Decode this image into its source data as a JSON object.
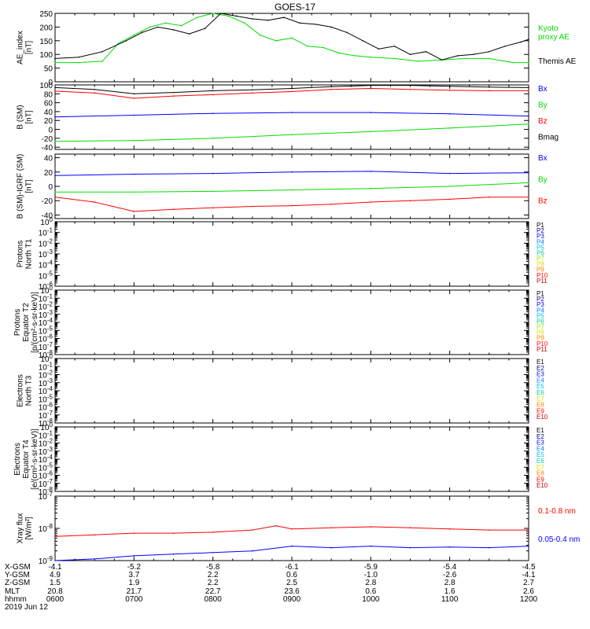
{
  "title": "GOES-17",
  "date_label": "2019 Jun 12",
  "colors": {
    "black": "#000000",
    "red": "#ff0000",
    "green": "#00dd00",
    "blue": "#0000ff"
  },
  "chart_data": [
    {
      "id": "ae",
      "type": "line",
      "ylabel": [
        "AE_index",
        "[nT]"
      ],
      "ylim": [
        0,
        250
      ],
      "yticks": [
        0,
        50,
        100,
        150,
        200,
        250
      ],
      "legend": [
        {
          "text": "Kyoto",
          "color": "#00dd00"
        },
        {
          "text": "proxy AE",
          "color": "#00dd00"
        },
        {
          "text": "Themis AE",
          "color": "#000000"
        }
      ],
      "series": [
        {
          "name": "Kyoto proxy AE",
          "color": "#00dd00",
          "x": [
            6.0,
            6.3,
            6.6,
            6.8,
            7.0,
            7.2,
            7.4,
            7.6,
            7.8,
            8.0,
            8.2,
            8.4,
            8.6,
            8.8,
            9.0,
            9.2,
            9.4,
            9.6,
            9.8,
            10.0,
            10.3,
            10.6,
            10.9,
            11.2,
            11.5,
            11.8,
            12.0
          ],
          "y": [
            70,
            70,
            75,
            140,
            170,
            200,
            215,
            205,
            235,
            250,
            240,
            215,
            170,
            150,
            160,
            130,
            125,
            105,
            95,
            90,
            85,
            75,
            80,
            85,
            85,
            70,
            70
          ]
        },
        {
          "name": "Themis AE",
          "color": "#000000",
          "x": [
            6.0,
            6.3,
            6.6,
            6.9,
            7.1,
            7.3,
            7.5,
            7.7,
            7.9,
            8.1,
            8.3,
            8.5,
            8.7,
            8.9,
            9.1,
            9.3,
            9.5,
            9.7,
            9.9,
            10.1,
            10.3,
            10.5,
            10.7,
            10.9,
            11.1,
            11.3,
            11.5,
            11.7,
            11.9,
            12.0
          ],
          "y": [
            85,
            90,
            110,
            150,
            180,
            200,
            190,
            175,
            195,
            250,
            240,
            230,
            225,
            235,
            215,
            210,
            200,
            180,
            150,
            120,
            130,
            100,
            110,
            80,
            95,
            100,
            110,
            130,
            145,
            155
          ]
        }
      ]
    },
    {
      "id": "b",
      "type": "line",
      "ylabel": [
        "B (SM)",
        "[nT]"
      ],
      "ylim": [
        -45,
        100
      ],
      "yticks": [
        -40,
        -20,
        0,
        20,
        40,
        60,
        80,
        100
      ],
      "legend": [
        {
          "text": "Bx",
          "color": "#0000ff"
        },
        {
          "text": "By",
          "color": "#00dd00"
        },
        {
          "text": "Bz",
          "color": "#ff0000"
        },
        {
          "text": "Bmag",
          "color": "#000000"
        }
      ],
      "series": [
        {
          "name": "Bx",
          "color": "#0000ff",
          "x": [
            6.0,
            7.0,
            8.0,
            9.0,
            10.0,
            11.0,
            12.0
          ],
          "y": [
            28,
            32,
            36,
            38,
            38,
            35,
            30
          ]
        },
        {
          "name": "By",
          "color": "#00dd00",
          "x": [
            6.0,
            7.0,
            8.0,
            9.0,
            10.0,
            11.0,
            12.0
          ],
          "y": [
            -27,
            -25,
            -20,
            -12,
            -5,
            3,
            12
          ]
        },
        {
          "name": "Bz",
          "color": "#ff0000",
          "x": [
            6.0,
            6.5,
            7.0,
            7.5,
            8.0,
            8.5,
            9.0,
            9.5,
            10.0,
            10.5,
            11.0,
            11.5,
            12.0
          ],
          "y": [
            86,
            82,
            70,
            75,
            78,
            82,
            85,
            90,
            92,
            90,
            88,
            87,
            87
          ]
        },
        {
          "name": "Bmag",
          "color": "#000000",
          "x": [
            6.0,
            6.5,
            7.0,
            7.5,
            8.0,
            8.5,
            9.0,
            9.5,
            10.0,
            10.5,
            11.0,
            11.5,
            12.0
          ],
          "y": [
            94,
            90,
            80,
            83,
            87,
            89,
            92,
            96,
            99,
            99,
            97,
            95,
            94
          ]
        }
      ]
    },
    {
      "id": "dbb",
      "type": "line",
      "ylabel": [
        "B (SM)-IGRF (SM)",
        "[nT]"
      ],
      "ylim": [
        -45,
        45
      ],
      "yticks": [
        -40,
        -20,
        0,
        20,
        40
      ],
      "legend": [
        {
          "text": "Bx",
          "color": "#0000ff"
        },
        {
          "text": "By",
          "color": "#00dd00"
        },
        {
          "text": "Bz",
          "color": "#ff0000"
        }
      ],
      "series": [
        {
          "name": "Bx",
          "color": "#0000ff",
          "x": [
            6.0,
            7.0,
            8.0,
            9.0,
            10.0,
            11.0,
            12.0
          ],
          "y": [
            15,
            17,
            18,
            20,
            21,
            18,
            19
          ]
        },
        {
          "name": "By",
          "color": "#00dd00",
          "x": [
            6.0,
            7.0,
            8.0,
            9.0,
            10.0,
            11.0,
            12.0
          ],
          "y": [
            -8,
            -8,
            -7,
            -5,
            -3,
            0,
            5
          ]
        },
        {
          "name": "Bz",
          "color": "#ff0000",
          "x": [
            6.0,
            6.5,
            7.0,
            7.5,
            8.0,
            8.5,
            9.0,
            9.5,
            10.0,
            10.5,
            11.0,
            11.5,
            12.0
          ],
          "y": [
            -15,
            -22,
            -35,
            -32,
            -30,
            -28,
            -27,
            -25,
            -22,
            -20,
            -18,
            -15,
            -15
          ]
        }
      ]
    },
    {
      "id": "pn",
      "type": "line",
      "log": true,
      "ylabel": [
        "Protons",
        "North T1"
      ],
      "ylim": [
        -6,
        0
      ],
      "yticks": [
        {
          "m": "10",
          "e": "0"
        },
        {
          "m": "10",
          "e": "-1"
        },
        {
          "m": "10",
          "e": "-2"
        },
        {
          "m": "10",
          "e": "-3"
        },
        {
          "m": "10",
          "e": "-4"
        },
        {
          "m": "10",
          "e": "-5"
        },
        {
          "m": "10",
          "e": "-6"
        }
      ],
      "legend": [
        {
          "text": "P1",
          "color": "#000000"
        },
        {
          "text": "P2",
          "color": "#000080"
        },
        {
          "text": "P3",
          "color": "#0000ff"
        },
        {
          "text": "P4",
          "color": "#0080ff"
        },
        {
          "text": "P5",
          "color": "#00c0e0"
        },
        {
          "text": "P6",
          "color": "#00d0a0"
        },
        {
          "text": "P7",
          "color": "#a0e000"
        },
        {
          "text": "P8",
          "color": "#e0e000"
        },
        {
          "text": "P9",
          "color": "#ff8000"
        },
        {
          "text": "P10",
          "color": "#ff0000"
        },
        {
          "text": "P11",
          "color": "#c00000"
        }
      ],
      "series": []
    },
    {
      "id": "pe",
      "type": "line",
      "log": true,
      "ylabel": [
        "Protons",
        "Equator T2",
        "[p/(cm²-s-sr-keV)]"
      ],
      "ylim": [
        -8,
        0
      ],
      "yticks": [
        {
          "m": "10",
          "e": "0"
        },
        {
          "m": "10",
          "e": "-1"
        },
        {
          "m": "10",
          "e": "-2"
        },
        {
          "m": "10",
          "e": "-3"
        },
        {
          "m": "10",
          "e": "-4"
        },
        {
          "m": "10",
          "e": "-5"
        },
        {
          "m": "10",
          "e": "-6"
        },
        {
          "m": "10",
          "e": "-7"
        },
        {
          "m": "10",
          "e": "-8"
        }
      ],
      "legend": [
        {
          "text": "P1",
          "color": "#000000"
        },
        {
          "text": "P2",
          "color": "#000080"
        },
        {
          "text": "P3",
          "color": "#0000ff"
        },
        {
          "text": "P4",
          "color": "#0080ff"
        },
        {
          "text": "P5",
          "color": "#00c0e0"
        },
        {
          "text": "P6",
          "color": "#00d0a0"
        },
        {
          "text": "P7",
          "color": "#a0e000"
        },
        {
          "text": "P8",
          "color": "#e0e000"
        },
        {
          "text": "P9",
          "color": "#ff8000"
        },
        {
          "text": "P10",
          "color": "#ff0000"
        },
        {
          "text": "P11",
          "color": "#c00000"
        }
      ],
      "series": []
    },
    {
      "id": "en",
      "type": "line",
      "log": true,
      "ylabel": [
        "Electrons",
        "North T3"
      ],
      "ylim": [
        -8,
        0
      ],
      "yticks": [
        {
          "m": "10",
          "e": "0"
        },
        {
          "m": "10",
          "e": "-1"
        },
        {
          "m": "10",
          "e": "-2"
        },
        {
          "m": "10",
          "e": "-3"
        },
        {
          "m": "10",
          "e": "-4"
        },
        {
          "m": "10",
          "e": "-5"
        },
        {
          "m": "10",
          "e": "-6"
        },
        {
          "m": "10",
          "e": "-7"
        },
        {
          "m": "10",
          "e": "-8"
        }
      ],
      "legend": [
        {
          "text": "E1",
          "color": "#000000"
        },
        {
          "text": "E2",
          "color": "#000080"
        },
        {
          "text": "E3",
          "color": "#0000ff"
        },
        {
          "text": "E4",
          "color": "#0080ff"
        },
        {
          "text": "E5",
          "color": "#00c0e0"
        },
        {
          "text": "E6",
          "color": "#00d0a0"
        },
        {
          "text": "E7",
          "color": "#e0e000"
        },
        {
          "text": "E8",
          "color": "#ff8000"
        },
        {
          "text": "E9",
          "color": "#ff0000"
        },
        {
          "text": "E10",
          "color": "#c00000"
        }
      ],
      "series": []
    },
    {
      "id": "ee",
      "type": "line",
      "log": true,
      "ylabel": [
        "Electrons",
        "Equator T4",
        "[e/(cm²-s-sr-keV)]"
      ],
      "ylim": [
        -8,
        0
      ],
      "yticks": [
        {
          "m": "10",
          "e": "0"
        },
        {
          "m": "10",
          "e": "-1"
        },
        {
          "m": "10",
          "e": "-2"
        },
        {
          "m": "10",
          "e": "-3"
        },
        {
          "m": "10",
          "e": "-4"
        },
        {
          "m": "10",
          "e": "-5"
        },
        {
          "m": "10",
          "e": "-6"
        },
        {
          "m": "10",
          "e": "-7"
        },
        {
          "m": "10",
          "e": "-8"
        }
      ],
      "legend": [
        {
          "text": "E1",
          "color": "#000000"
        },
        {
          "text": "E2",
          "color": "#000080"
        },
        {
          "text": "E3",
          "color": "#0000ff"
        },
        {
          "text": "E4",
          "color": "#0080ff"
        },
        {
          "text": "E5",
          "color": "#00c0e0"
        },
        {
          "text": "E6",
          "color": "#00d0a0"
        },
        {
          "text": "E7",
          "color": "#e0e000"
        },
        {
          "text": "E8",
          "color": "#ff8000"
        },
        {
          "text": "E9",
          "color": "#ff0000"
        },
        {
          "text": "E10",
          "color": "#c00000"
        }
      ],
      "series": []
    },
    {
      "id": "xray",
      "type": "line",
      "log": true,
      "ylabel": [
        "Xray flux",
        "[W/m²]"
      ],
      "ylim": [
        -9,
        -7
      ],
      "yticks": [
        {
          "m": "10",
          "e": "-7"
        },
        {
          "m": "10",
          "e": "-8"
        },
        {
          "m": "10",
          "e": "-9"
        }
      ],
      "legend": [
        {
          "text": "0.1-0.8 nm",
          "color": "#ff0000"
        },
        {
          "text": "0.05-0.4 nm",
          "color": "#0000ff"
        }
      ],
      "series": [
        {
          "name": "0.1-0.8 nm",
          "color": "#ff0000",
          "x": [
            6.0,
            6.5,
            7.0,
            7.5,
            8.0,
            8.5,
            8.8,
            9.0,
            9.5,
            10.0,
            10.5,
            11.0,
            11.5,
            12.0
          ],
          "y": [
            -8.25,
            -8.2,
            -8.15,
            -8.15,
            -8.12,
            -8.05,
            -7.92,
            -8.02,
            -7.98,
            -7.95,
            -7.98,
            -8.02,
            -8.05,
            -8.05
          ]
        },
        {
          "name": "0.05-0.4 nm",
          "color": "#0000ff",
          "x": [
            6.0,
            6.5,
            7.0,
            7.5,
            8.0,
            8.5,
            9.0,
            9.5,
            10.0,
            10.5,
            11.0,
            11.5,
            12.0
          ],
          "y": [
            -9.05,
            -8.95,
            -8.85,
            -8.8,
            -8.75,
            -8.7,
            -8.55,
            -8.6,
            -8.55,
            -8.6,
            -8.58,
            -8.6,
            -8.55
          ]
        }
      ]
    }
  ],
  "x_axis": {
    "xlim": [
      6,
      12
    ],
    "ticks": [
      6,
      7,
      8,
      9,
      10,
      11,
      12
    ],
    "rows": [
      {
        "label": "X-GSM",
        "values": [
          "-4.1",
          "-5.2",
          "-5.8",
          "-6.1",
          "-5.9",
          "-5.4",
          "-4.5"
        ]
      },
      {
        "label": "Y-GSM",
        "values": [
          "4.9",
          "3.7",
          "2.2",
          "0.6",
          "-1.0",
          "-2.6",
          "-4.1"
        ]
      },
      {
        "label": "Z-GSM",
        "values": [
          "1.5",
          "1.9",
          "2.2",
          "2.5",
          "2.8",
          "2.8",
          "2.7"
        ]
      },
      {
        "label": "MLT",
        "values": [
          "20.8",
          "21.7",
          "22.7",
          "23.6",
          "0.6",
          "1.6",
          "2.6"
        ]
      },
      {
        "label": "hhmm",
        "values": [
          "0600",
          "0700",
          "0800",
          "0900",
          "1000",
          "1100",
          "1200"
        ]
      }
    ]
  }
}
